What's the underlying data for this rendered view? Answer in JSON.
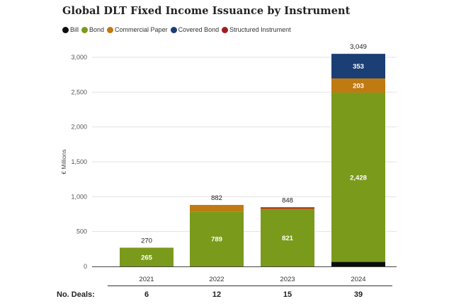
{
  "chart_data": {
    "type": "bar",
    "stacked": true,
    "title": "Global DLT Fixed Income Issuance by Instrument",
    "xlabel": "",
    "ylabel": "€ Millions",
    "ylim": [
      0,
      3200
    ],
    "yticks": [
      0,
      500,
      1000,
      1500,
      2000,
      2500,
      3000
    ],
    "ytick_labels": [
      "0",
      "500",
      "1,000",
      "1,500",
      "2,000",
      "2,500",
      "3,000"
    ],
    "categories": [
      "2021",
      "2022",
      "2023",
      "2024"
    ],
    "series": [
      {
        "name": "Bill",
        "color": "#0d0d0d",
        "values": [
          0,
          0,
          0,
          65
        ]
      },
      {
        "name": "Bond",
        "color": "#7a9a1c",
        "values": [
          265,
          789,
          821,
          2428
        ]
      },
      {
        "name": "Commercial Paper",
        "color": "#c07a12",
        "values": [
          5,
          93,
          10,
          203
        ]
      },
      {
        "name": "Covered Bond",
        "color": "#1b3f74",
        "values": [
          0,
          0,
          0,
          353
        ]
      },
      {
        "name": "Structured Instrument",
        "color": "#a11d1d",
        "values": [
          0,
          0,
          17,
          0
        ]
      }
    ],
    "segment_labels": [
      {
        "category": "2021",
        "series": "Bond",
        "text": "265"
      },
      {
        "category": "2022",
        "series": "Bond",
        "text": "789"
      },
      {
        "category": "2023",
        "series": "Bond",
        "text": "821"
      },
      {
        "category": "2024",
        "series": "Bond",
        "text": "2,428"
      },
      {
        "category": "2024",
        "series": "Commercial Paper",
        "text": "203"
      },
      {
        "category": "2024",
        "series": "Covered Bond",
        "text": "353"
      }
    ],
    "totals": [
      {
        "category": "2021",
        "value": 270,
        "text": "270"
      },
      {
        "category": "2022",
        "value": 882,
        "text": "882"
      },
      {
        "category": "2023",
        "value": 848,
        "text": "848"
      },
      {
        "category": "2024",
        "value": 3049,
        "text": "3,049"
      }
    ],
    "grid": true,
    "legend": "top-left"
  },
  "deals": {
    "label": "No. Deals:",
    "values": [
      "6",
      "12",
      "15",
      "39"
    ]
  }
}
